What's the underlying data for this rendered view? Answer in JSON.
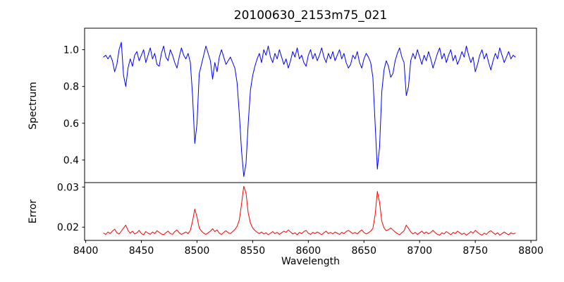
{
  "figure": {
    "background": "#ffffff",
    "text_color": "#000000"
  },
  "chart_data": [
    {
      "type": "line",
      "panel": "top",
      "title": "20100630_2153m75_021",
      "ylabel": "Spectrum",
      "xlim": [
        8399,
        8805
      ],
      "ylim": [
        0.277,
        1.117
      ],
      "yticks": [
        0.4,
        0.6,
        0.8,
        1.0
      ],
      "ytick_labels": [
        "0.4",
        "0.6",
        "0.8",
        "1.0"
      ],
      "grid": false,
      "legend": "none",
      "series": [
        {
          "name": "spectrum",
          "color": "#0000ff",
          "x_start": 8416,
          "x_step": 2,
          "values": [
            0.96,
            0.97,
            0.95,
            0.97,
            0.94,
            0.88,
            0.92,
            1.0,
            1.04,
            0.86,
            0.8,
            0.9,
            0.95,
            0.91,
            0.97,
            0.99,
            0.94,
            0.97,
            1.0,
            0.93,
            0.97,
            1.01,
            0.95,
            0.98,
            0.92,
            0.91,
            0.98,
            1.02,
            0.96,
            0.94,
            1.0,
            0.97,
            0.93,
            0.9,
            0.96,
            1.01,
            0.97,
            0.95,
            0.98,
            0.93,
            0.75,
            0.49,
            0.6,
            0.87,
            0.92,
            0.97,
            1.02,
            0.98,
            0.94,
            0.84,
            0.93,
            0.88,
            0.96,
            1.0,
            0.96,
            0.92,
            0.94,
            0.96,
            0.93,
            0.9,
            0.82,
            0.65,
            0.45,
            0.31,
            0.38,
            0.6,
            0.78,
            0.86,
            0.91,
            0.95,
            0.98,
            0.93,
            1.0,
            0.97,
            1.02,
            0.96,
            0.93,
            0.98,
            0.95,
            1.0,
            0.96,
            0.92,
            0.95,
            0.9,
            0.94,
            0.99,
            0.96,
            1.01,
            0.95,
            0.97,
            0.93,
            0.91,
            0.97,
            1.0,
            0.95,
            0.98,
            0.94,
            0.97,
            1.01,
            0.96,
            0.93,
            0.98,
            0.95,
            0.99,
            0.94,
            0.97,
            1.0,
            0.95,
            0.98,
            0.93,
            0.9,
            0.92,
            0.97,
            0.95,
            0.99,
            0.93,
            0.9,
            0.95,
            0.98,
            0.96,
            0.93,
            0.85,
            0.6,
            0.35,
            0.47,
            0.77,
            0.89,
            0.94,
            0.91,
            0.85,
            0.87,
            0.94,
            0.98,
            1.01,
            0.96,
            0.93,
            0.75,
            0.8,
            0.94,
            0.98,
            0.95,
            1.0,
            0.96,
            0.92,
            0.97,
            0.94,
            0.99,
            0.95,
            0.9,
            0.94,
            0.98,
            1.01,
            0.95,
            0.98,
            0.93,
            0.97,
            1.0,
            0.94,
            0.97,
            0.92,
            0.95,
            0.99,
            0.96,
            1.02,
            0.97,
            0.93,
            0.96,
            0.88,
            0.92,
            0.97,
            1.0,
            0.95,
            0.98,
            0.93,
            0.89,
            0.94,
            0.98,
            0.95,
            1.01,
            0.97,
            0.93,
            0.96,
            0.99,
            0.95,
            0.97,
            0.96
          ]
        }
      ],
      "features": {
        "absorption_lines_wavelength": [
          8435,
          8498,
          8542,
          8662,
          8689
        ],
        "deepest_values": {
          "8498": 0.49,
          "8542": 0.31,
          "8662": 0.35
        }
      }
    },
    {
      "type": "line",
      "panel": "bottom",
      "ylabel": "Error",
      "xlabel": "Wavelength",
      "xlim": [
        8399,
        8805
      ],
      "ylim": [
        0.0167,
        0.0311
      ],
      "yticks": [
        0.02,
        0.03
      ],
      "ytick_labels": [
        "0.02",
        "0.03"
      ],
      "xticks": [
        8400,
        8450,
        8500,
        8550,
        8600,
        8650,
        8700,
        8750,
        8800
      ],
      "xtick_labels": [
        "8400",
        "8450",
        "8500",
        "8550",
        "8600",
        "8650",
        "8700",
        "8750",
        "8800"
      ],
      "grid": false,
      "legend": "none",
      "series": [
        {
          "name": "error",
          "color": "#ff0000",
          "x_start": 8416,
          "x_step": 2,
          "values": [
            0.0185,
            0.0182,
            0.0188,
            0.0184,
            0.019,
            0.0195,
            0.0186,
            0.0183,
            0.019,
            0.0198,
            0.0205,
            0.0192,
            0.0185,
            0.019,
            0.0183,
            0.0186,
            0.0192,
            0.0184,
            0.0181,
            0.0189,
            0.0185,
            0.0182,
            0.0188,
            0.0184,
            0.0191,
            0.0187,
            0.0183,
            0.0181,
            0.0186,
            0.019,
            0.0184,
            0.0182,
            0.0189,
            0.0193,
            0.0186,
            0.0182,
            0.0185,
            0.0188,
            0.0184,
            0.0192,
            0.0215,
            0.0245,
            0.0225,
            0.0198,
            0.019,
            0.0185,
            0.0182,
            0.0186,
            0.019,
            0.0196,
            0.0189,
            0.0193,
            0.0185,
            0.0182,
            0.0187,
            0.0191,
            0.0186,
            0.0184,
            0.0189,
            0.0194,
            0.0202,
            0.0218,
            0.0258,
            0.0302,
            0.0285,
            0.0235,
            0.021,
            0.0198,
            0.0192,
            0.0187,
            0.0184,
            0.0188,
            0.0183,
            0.0186,
            0.0181,
            0.0185,
            0.0189,
            0.0184,
            0.0187,
            0.0182,
            0.0186,
            0.019,
            0.0187,
            0.0193,
            0.0188,
            0.0183,
            0.0186,
            0.0181,
            0.0187,
            0.0184,
            0.0189,
            0.0192,
            0.0185,
            0.0182,
            0.0187,
            0.0184,
            0.0188,
            0.0185,
            0.0181,
            0.0186,
            0.019,
            0.0184,
            0.0187,
            0.0183,
            0.0188,
            0.0185,
            0.0182,
            0.0187,
            0.0184,
            0.0189,
            0.0192,
            0.0188,
            0.0184,
            0.0187,
            0.0183,
            0.0189,
            0.0193,
            0.0187,
            0.0183,
            0.0186,
            0.019,
            0.0197,
            0.023,
            0.0289,
            0.0262,
            0.0215,
            0.0198,
            0.0191,
            0.0194,
            0.0198,
            0.0193,
            0.0188,
            0.0184,
            0.0181,
            0.0186,
            0.0191,
            0.0205,
            0.0197,
            0.0188,
            0.0183,
            0.0187,
            0.0182,
            0.0186,
            0.019,
            0.0184,
            0.0188,
            0.0183,
            0.0187,
            0.0192,
            0.0186,
            0.0182,
            0.018,
            0.0186,
            0.0183,
            0.0189,
            0.0185,
            0.0181,
            0.0187,
            0.0184,
            0.019,
            0.0186,
            0.0182,
            0.0185,
            0.018,
            0.0184,
            0.0189,
            0.0185,
            0.0192,
            0.0187,
            0.0183,
            0.018,
            0.0185,
            0.0182,
            0.0188,
            0.0191,
            0.0186,
            0.0182,
            0.0186,
            0.018,
            0.0184,
            0.0188,
            0.0184,
            0.0181,
            0.0186,
            0.0183,
            0.0185
          ]
        }
      ]
    }
  ]
}
